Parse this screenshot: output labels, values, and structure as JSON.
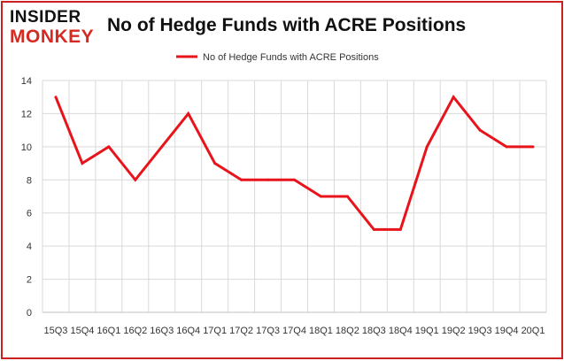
{
  "brand": {
    "logo_top": "INSIDER",
    "logo_bottom": "MONKEY"
  },
  "chart_data": {
    "type": "line",
    "title": "No of Hedge Funds with ACRE Positions",
    "xlabel": "",
    "ylabel": "",
    "categories": [
      "15Q3",
      "15Q4",
      "16Q1",
      "16Q2",
      "16Q3",
      "16Q4",
      "17Q1",
      "17Q2",
      "17Q3",
      "17Q4",
      "18Q1",
      "18Q2",
      "18Q3",
      "18Q4",
      "19Q1",
      "19Q2",
      "19Q3",
      "19Q4",
      "20Q1"
    ],
    "series": [
      {
        "name": "No of Hedge Funds with ACRE Positions",
        "color": "#e8141b",
        "values": [
          13,
          9,
          10,
          8,
          10,
          12,
          9,
          8,
          8,
          8,
          7,
          7,
          5,
          5,
          10,
          13,
          11,
          10,
          10
        ]
      }
    ],
    "ylim": [
      0,
      14
    ],
    "yticks": [
      0,
      2,
      4,
      6,
      8,
      10,
      12,
      14
    ],
    "grid": true,
    "legend": "top-center"
  }
}
